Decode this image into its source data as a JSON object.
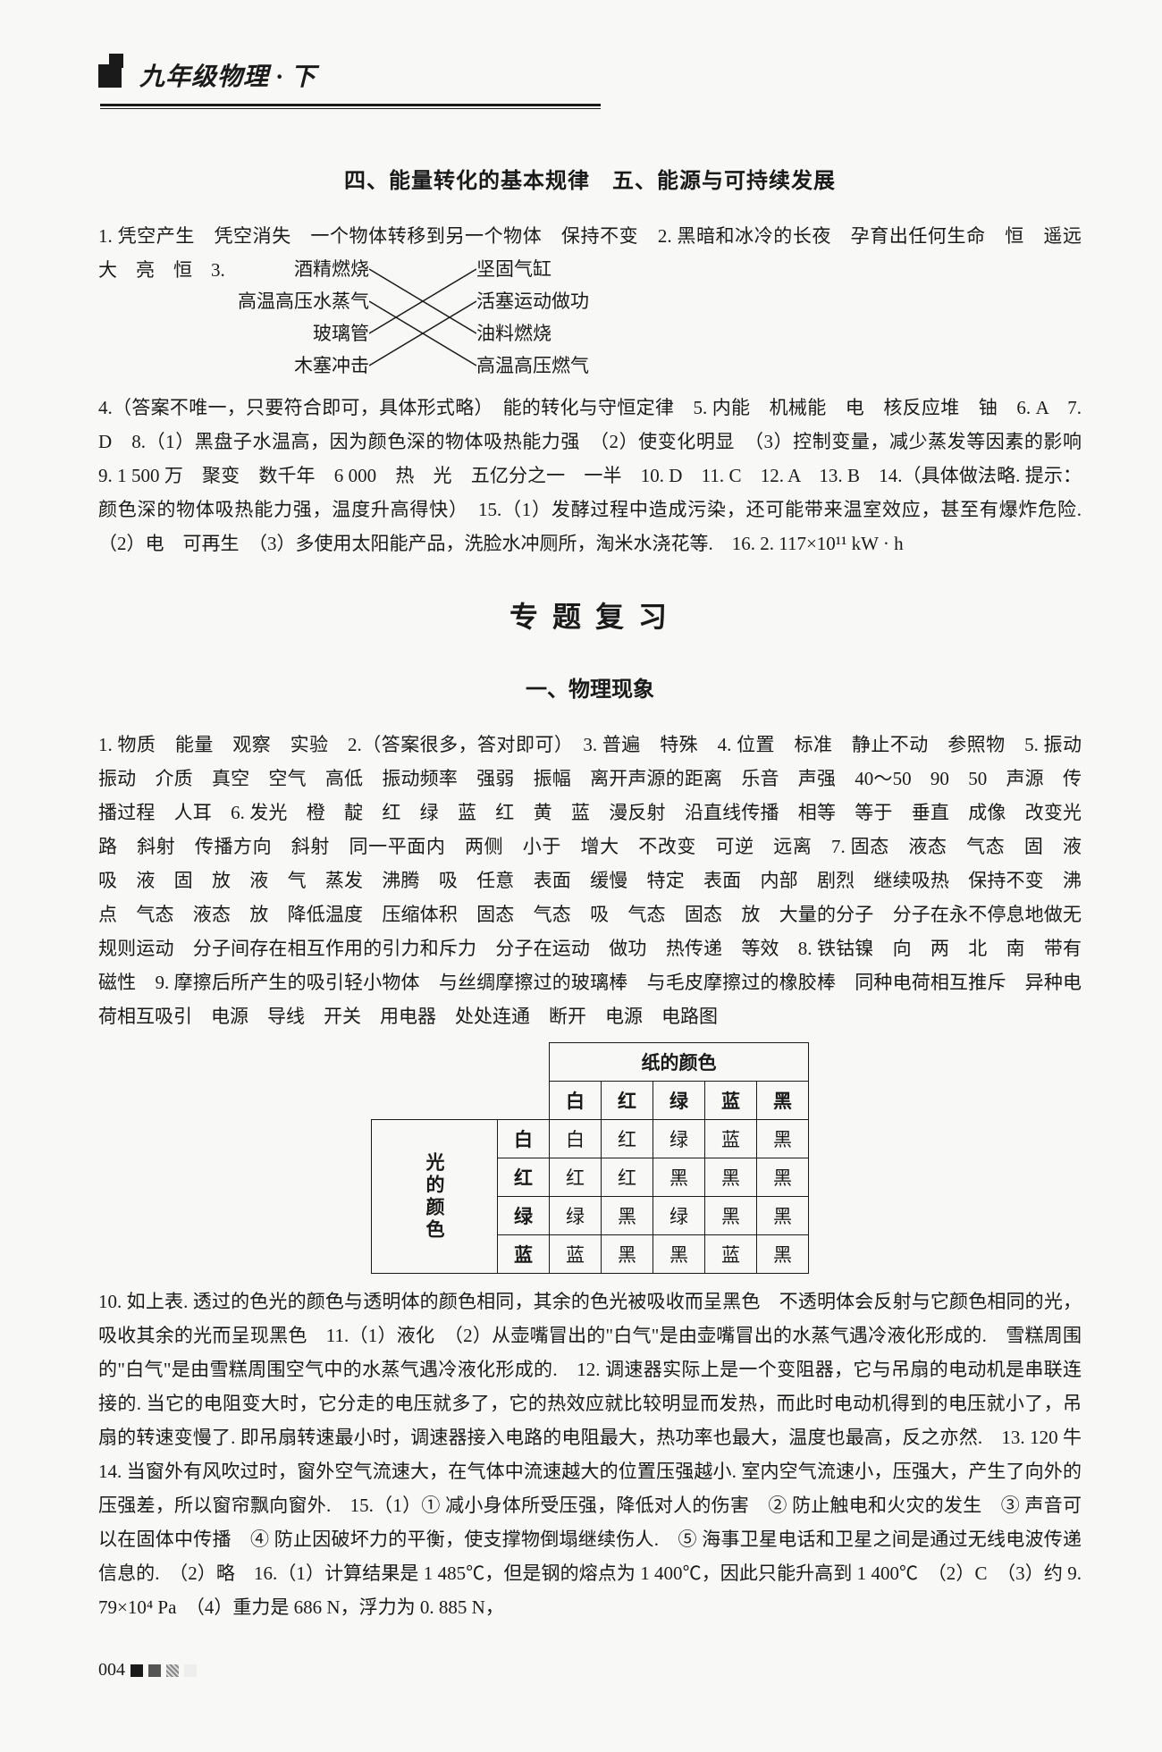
{
  "header": {
    "title": "九年级物理 · 下"
  },
  "section4_5": {
    "title": "四、能量转化的基本规律　五、能源与可持续发展",
    "para1_prefix": "1. 凭空产生　凭空消失　一个物体转移到另一个物体　保持不变　2. 黑暗和冰冷的长夜　孕育出任何生命　恒　遥远　大　亮　恒　3. ",
    "match": {
      "left": [
        "酒精燃烧",
        "高温高压水蒸气",
        "玻璃管",
        "木塞冲击"
      ],
      "right": [
        "坚固气缸",
        "活塞运动做功",
        "油料燃烧",
        "高温高压燃气"
      ],
      "edges": [
        [
          0,
          2
        ],
        [
          1,
          3
        ],
        [
          2,
          0
        ],
        [
          3,
          1
        ]
      ]
    },
    "para2": "4.（答案不唯一，只要符合即可，具体形式略）　能的转化与守恒定律　5. 内能　机械能　电　核反应堆　铀　6. A　7. D　8.（1）黑盘子水温高，因为颜色深的物体吸热能力强　（2）使变化明显　（3）控制变量，减少蒸发等因素的影响　9. 1 500 万　聚变　数千年　6 000　热　光　五亿分之一　一半　10. D　11. C　12. A　13. B　14.（具体做法略. 提示：颜色深的物体吸热能力强，温度升高得快）　15.（1）发酵过程中造成污染，还可能带来温室效应，甚至有爆炸危险.　（2）电　可再生　（3）多使用太阳能产品，洗脸水冲厕所，淘米水浇花等.　16. 2. 117×10¹¹ kW · h"
  },
  "review": {
    "heading": "专 题 复 习",
    "sub": "一、物理现象",
    "para1": "1. 物质　能量　观察　实验　2.（答案很多，答对即可）　3. 普遍　特殊　4. 位置　标准　静止不动　参照物　5. 振动　振动　介质　真空　空气　高低　振动频率　强弱　振幅　离开声源的距离　乐音　声强　40～50　90　50　声源　传播过程　人耳　6. 发光　橙　靛　红　绿　蓝　红　黄　蓝　漫反射　沿直线传播　相等　等于　垂直　成像　改变光路　斜射　传播方向　斜射　同一平面内　两侧　小于　增大　不改变　可逆　远离　7. 固态　液态　气态　固　液　吸　液　固　放　液　气　蒸发　沸腾　吸　任意　表面　缓慢　特定　表面　内部　剧烈　继续吸热　保持不变　沸点　气态　液态　放　降低温度　压缩体积　固态　气态　吸　气态　固态　放　大量的分子　分子在永不停息地做无规则运动　分子间存在相互作用的引力和斥力　分子在运动　做功　热传递　等效　8. 铁钴镍　向　两　北　南　带有磁性　9. 摩擦后所产生的吸引轻小物体　与丝绸摩擦过的玻璃棒　与毛皮摩擦过的橡胶棒　同种电荷相互推斥　异种电荷相互吸引　电源　导线　开关　用电器　处处连通　断开　电源　电路图",
    "table": {
      "topHeader": "纸的颜色",
      "leftHeader": "光的颜色",
      "cols": [
        "白",
        "红",
        "绿",
        "蓝",
        "黑"
      ],
      "rows": [
        {
          "label": "白",
          "cells": [
            "白",
            "红",
            "绿",
            "蓝",
            "黑"
          ]
        },
        {
          "label": "红",
          "cells": [
            "红",
            "红",
            "黑",
            "黑",
            "黑"
          ]
        },
        {
          "label": "绿",
          "cells": [
            "绿",
            "黑",
            "绿",
            "黑",
            "黑"
          ]
        },
        {
          "label": "蓝",
          "cells": [
            "蓝",
            "黑",
            "黑",
            "蓝",
            "黑"
          ]
        }
      ]
    },
    "para2": "10. 如上表. 透过的色光的颜色与透明体的颜色相同，其余的色光被吸收而呈黑色　不透明体会反射与它颜色相同的光，吸收其余的光而呈现黑色　11.（1）液化　（2）从壶嘴冒出的\"白气\"是由壶嘴冒出的水蒸气遇冷液化形成的.　雪糕周围的\"白气\"是由雪糕周围空气中的水蒸气遇冷液化形成的.　12. 调速器实际上是一个变阻器，它与吊扇的电动机是串联连接的. 当它的电阻变大时，它分走的电压就多了，它的热效应就比较明显而发热，而此时电动机得到的电压就小了，吊扇的转速变慢了. 即吊扇转速最小时，调速器接入电路的电阻最大，热功率也最大，温度也最高，反之亦然.　13. 120 牛　14. 当窗外有风吹过时，窗外空气流速大，在气体中流速越大的位置压强越小. 室内空气流速小，压强大，产生了向外的压强差，所以窗帘飘向窗外.　15.（1）① 减小身体所受压强，降低对人的伤害　② 防止触电和火灾的发生　③ 声音可以在固体中传播　④ 防止因破坏力的平衡，使支撑物倒塌继续伤人.　⑤ 海事卫星电话和卫星之间是通过无线电波传递信息的.　（2）略　16.（1）计算结果是 1 485℃，但是钢的熔点为 1 400℃，因此只能升高到 1 400℃　（2）C　（3）约 9. 79×10⁴ Pa　（4）重力是 686 N，浮力为 0. 885 N，"
  },
  "footer": {
    "page": "004"
  }
}
